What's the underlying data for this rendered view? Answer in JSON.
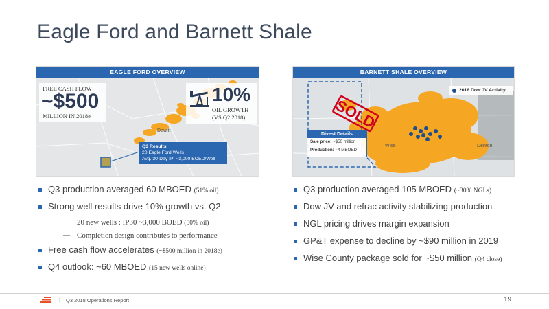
{
  "title": "Eagle Ford and Barnett Shale",
  "eagle_ford": {
    "header": "EAGLE FORD OVERVIEW",
    "fcf_label": "FREE CASH FLOW",
    "fcf_value": "~$500",
    "fcf_sub": "MILLION IN 2018e",
    "growth_value": "10%",
    "growth_sub1": "OIL GROWTH",
    "growth_sub2": "(VS Q2 2018)",
    "place": "Dewitt",
    "q3_title": "Q3 Results",
    "q3_line1": "20 Eagle Ford Wells",
    "q3_line2": "Avg. 30-Day IP: ~3,000 BOED/Well",
    "icons": [
      "pumpjack-icon"
    ]
  },
  "barnett": {
    "header": "BARNETT SHALE OVERVIEW",
    "stamp": "SOLD",
    "legend": "2018 Dow JV Activity",
    "divest_title": "Divest Details",
    "divest_price_label": "Sale price:",
    "divest_price": "~$50 million",
    "divest_prod_label": "Production:",
    "divest_prod": "~4 MBOED",
    "place_wise": "Wise",
    "place_denton": "Denton"
  },
  "left_bullets": [
    {
      "text": "Q3 production averaged 60 MBOED ",
      "small": "(51% oil)"
    },
    {
      "text": "Strong well results drive 10% growth vs. Q2",
      "small": ""
    }
  ],
  "left_subs": [
    {
      "text": "20 new wells : IP30 ~3,000 BOED ",
      "small": "(50% oil)"
    },
    {
      "text": "Completion design contributes to performance",
      "small": ""
    }
  ],
  "left_bullets2": [
    {
      "text": "Free cash flow accelerates ",
      "small": "(~$500 million in 2018e)"
    },
    {
      "text": "Q4 outlook: ~60 MBOED ",
      "small": "(15 new wells online)"
    }
  ],
  "right_bullets": [
    {
      "text": "Q3 production averaged 105 MBOED ",
      "small": "(~30% NGLs)"
    },
    {
      "text": "Dow JV and refrac activity stabilizing production",
      "small": ""
    },
    {
      "text": "NGL pricing drives margin expansion",
      "small": ""
    },
    {
      "text": "GP&T expense to decline by ~$90 million in 2019",
      "small": ""
    },
    {
      "text": "Wise County package sold for ~$50 million ",
      "small": "(Q4 close)"
    }
  ],
  "footer": {
    "separator": "|",
    "text": "Q3 2018 Operations Report",
    "page": "19"
  },
  "colors": {
    "accent": "#2b67b0",
    "orange": "#f5a623",
    "sold": "#d0021b"
  }
}
